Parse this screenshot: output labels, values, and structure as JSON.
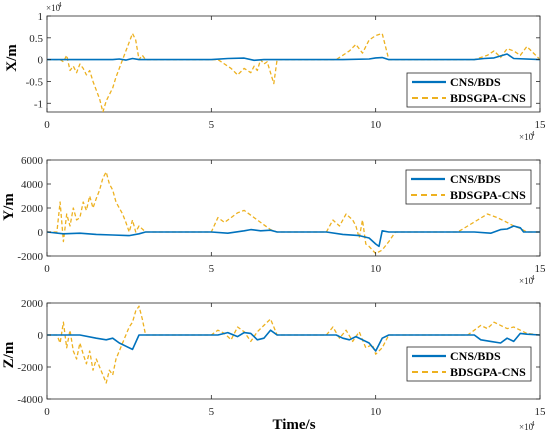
{
  "colors": {
    "cns_bds": "#0072BD",
    "bdsgpa_cns": "#EDB120",
    "axis": "#262626"
  },
  "chart_data": [
    {
      "type": "line",
      "ylabel": "X/m",
      "xlabel": "",
      "xlim": [
        0,
        150000
      ],
      "ylim": [
        -12000,
        10000
      ],
      "xticks": [
        "0",
        "5",
        "10",
        "15"
      ],
      "yticks": [
        "1",
        "0.5",
        "0",
        "-0.5",
        "-1"
      ],
      "ytick_values": [
        10000,
        5000,
        0,
        -5000,
        -10000
      ],
      "y_exponent": "×10",
      "y_exponent_power": "4",
      "x_exponent": "×10",
      "x_exponent_power": "4",
      "legend_position": "lower-right",
      "grid": false,
      "series": [
        {
          "name": "CNS/BDS",
          "style": "solid",
          "x": [
            0,
            10000,
            20000,
            22000,
            24000,
            26000,
            28000,
            50000,
            55000,
            60000,
            63000,
            66000,
            70000,
            90000,
            98000,
            100000,
            102000,
            104000,
            130000,
            133000,
            136000,
            140000,
            142000,
            150000
          ],
          "y": [
            0,
            0,
            0,
            150,
            -100,
            250,
            0,
            0,
            250,
            350,
            -150,
            0,
            0,
            0,
            150,
            400,
            500,
            0,
            0,
            250,
            400,
            1300,
            250,
            0
          ]
        },
        {
          "name": "BDSGPA-CNS",
          "style": "dashed",
          "x": [
            0,
            4000,
            5000,
            6000,
            7000,
            8000,
            9000,
            10000,
            11000,
            12000,
            13000,
            14000,
            15000,
            16000,
            17000,
            18000,
            19000,
            20000,
            21000,
            22000,
            23000,
            24000,
            25000,
            26000,
            27000,
            28000,
            29000,
            30000,
            40000,
            52000,
            54000,
            56000,
            58000,
            60000,
            62000,
            63000,
            64000,
            65000,
            66000,
            67000,
            68000,
            69000,
            70000,
            75000,
            88000,
            90000,
            92000,
            94000,
            96000,
            98000,
            100000,
            102000,
            103000,
            104000,
            106000,
            115000,
            130000,
            132000,
            134000,
            136000,
            138000,
            140000,
            142000,
            144000,
            146000,
            150000
          ],
          "y": [
            0,
            0,
            -500,
            1000,
            -2500,
            -1500,
            -3000,
            -1000,
            -2000,
            -3500,
            -2500,
            -5000,
            -7000,
            -9000,
            -12000,
            -9500,
            -8000,
            -6500,
            -4000,
            -2000,
            0,
            2000,
            4000,
            6000,
            4500,
            0,
            1000,
            0,
            0,
            0,
            -1000,
            -2000,
            -3500,
            -2000,
            -3000,
            -1500,
            -2500,
            0,
            -1000,
            -500,
            -3000,
            -5500,
            0,
            0,
            0,
            1000,
            2000,
            3500,
            1500,
            4500,
            5500,
            6000,
            3000,
            0,
            0,
            0,
            0,
            500,
            1000,
            2000,
            500,
            2500,
            2000,
            1000,
            3000,
            0
          ]
        }
      ]
    },
    {
      "type": "line",
      "ylabel": "Y/m",
      "xlabel": "",
      "xlim": [
        0,
        150000
      ],
      "ylim": [
        -2000,
        6000
      ],
      "xticks": [
        "0",
        "5",
        "10",
        "15"
      ],
      "yticks": [
        "6000",
        "4000",
        "2000",
        "0",
        "-2000"
      ],
      "ytick_values": [
        6000,
        4000,
        2000,
        0,
        -2000
      ],
      "x_exponent": "×10",
      "x_exponent_power": "4",
      "legend_position": "upper-right",
      "grid": false,
      "series": [
        {
          "name": "CNS/BDS",
          "style": "solid",
          "x": [
            0,
            5000,
            10000,
            15000,
            20000,
            25000,
            28000,
            30000,
            50000,
            55000,
            60000,
            62000,
            65000,
            68000,
            70000,
            85000,
            90000,
            95000,
            98000,
            100000,
            101000,
            102000,
            104000,
            130000,
            135000,
            138000,
            140000,
            142000,
            144000,
            145000,
            150000
          ],
          "y": [
            0,
            -150,
            -100,
            -200,
            -250,
            -300,
            -150,
            0,
            0,
            -100,
            100,
            200,
            100,
            150,
            0,
            0,
            -200,
            -300,
            -500,
            -1000,
            -1200,
            100,
            0,
            0,
            -100,
            200,
            250,
            500,
            350,
            0,
            0
          ]
        },
        {
          "name": "BDSGPA-CNS",
          "style": "dashed",
          "x": [
            0,
            3000,
            4000,
            5000,
            6000,
            7000,
            8000,
            9000,
            10000,
            11000,
            12000,
            13000,
            14000,
            15000,
            16000,
            17000,
            18000,
            19000,
            20000,
            21000,
            22000,
            23000,
            24000,
            25000,
            26000,
            27000,
            28000,
            30000,
            50000,
            52000,
            54000,
            56000,
            58000,
            60000,
            62000,
            64000,
            66000,
            68000,
            70000,
            85000,
            87000,
            89000,
            91000,
            93000,
            94000,
            95000,
            96000,
            97000,
            98000,
            100000,
            102000,
            104000,
            106000,
            125000,
            128000,
            131000,
            134000,
            137000,
            140000,
            142000,
            144000,
            146000,
            150000
          ],
          "y": [
            0,
            0,
            2500,
            -800,
            1500,
            500,
            2000,
            1000,
            1200,
            2500,
            1800,
            3000,
            2000,
            2800,
            3500,
            4500,
            5000,
            4000,
            3500,
            2500,
            2000,
            1500,
            800,
            0,
            1000,
            0,
            500,
            0,
            0,
            1200,
            800,
            1200,
            1600,
            1800,
            1400,
            1000,
            600,
            200,
            0,
            0,
            1000,
            500,
            1500,
            1000,
            500,
            -500,
            1000,
            -1000,
            -1200,
            -1800,
            -1500,
            -800,
            0,
            0,
            500,
            1000,
            1500,
            1200,
            800,
            500,
            300,
            0,
            0
          ]
        }
      ]
    },
    {
      "type": "line",
      "ylabel": "Z/m",
      "xlabel": "Time/s",
      "xlim": [
        0,
        150000
      ],
      "ylim": [
        -4000,
        2000
      ],
      "xticks": [
        "0",
        "5",
        "10",
        "15"
      ],
      "yticks": [
        "2000",
        "0",
        "-2000",
        "-4000"
      ],
      "ytick_values": [
        2000,
        0,
        -2000,
        -4000
      ],
      "x_exponent": "×10",
      "x_exponent_power": "4",
      "legend_position": "lower-right",
      "grid": false,
      "series": [
        {
          "name": "CNS/BDS",
          "style": "solid",
          "x": [
            0,
            10000,
            15000,
            18000,
            20000,
            22000,
            24000,
            26000,
            28000,
            30000,
            52000,
            55000,
            58000,
            60000,
            62000,
            64000,
            66000,
            68000,
            70000,
            88000,
            90000,
            92000,
            94000,
            96000,
            98000,
            100000,
            102000,
            104000,
            130000,
            132000,
            135000,
            138000,
            140000,
            142000,
            144000,
            146000,
            150000
          ],
          "y": [
            0,
            0,
            -200,
            -300,
            -200,
            -500,
            -700,
            -900,
            0,
            0,
            0,
            150,
            -100,
            150,
            100,
            -300,
            -200,
            300,
            0,
            0,
            -200,
            -300,
            -100,
            -300,
            -500,
            -1000,
            -200,
            0,
            0,
            -300,
            -400,
            -500,
            -200,
            -400,
            100,
            50,
            0
          ]
        },
        {
          "name": "BDSGPA-CNS",
          "style": "dashed",
          "x": [
            0,
            3000,
            4000,
            5000,
            6000,
            7000,
            8000,
            9000,
            10000,
            11000,
            12000,
            13000,
            14000,
            15000,
            16000,
            17000,
            18000,
            19000,
            20000,
            21000,
            22000,
            23000,
            24000,
            25000,
            26000,
            27000,
            28000,
            29000,
            30000,
            50000,
            52000,
            54000,
            56000,
            58000,
            60000,
            62000,
            64000,
            66000,
            68000,
            70000,
            85000,
            87000,
            89000,
            91000,
            93000,
            95000,
            97000,
            99000,
            100000,
            102000,
            104000,
            128000,
            130000,
            132000,
            134000,
            136000,
            138000,
            140000,
            142000,
            144000,
            146000,
            150000
          ],
          "y": [
            0,
            0,
            -500,
            800,
            -800,
            300,
            -1000,
            -1500,
            -500,
            -1200,
            -1800,
            -1000,
            -2200,
            -1500,
            -2000,
            -2500,
            -3000,
            -2200,
            -2500,
            -1500,
            -1000,
            -500,
            0,
            500,
            800,
            1500,
            1800,
            1000,
            0,
            0,
            300,
            100,
            -300,
            500,
            200,
            -400,
            200,
            600,
            1000,
            0,
            0,
            500,
            -200,
            300,
            -400,
            200,
            -800,
            -600,
            -1200,
            -800,
            0,
            0,
            300,
            600,
            400,
            800,
            600,
            400,
            500,
            300,
            100,
            0
          ]
        }
      ]
    }
  ]
}
